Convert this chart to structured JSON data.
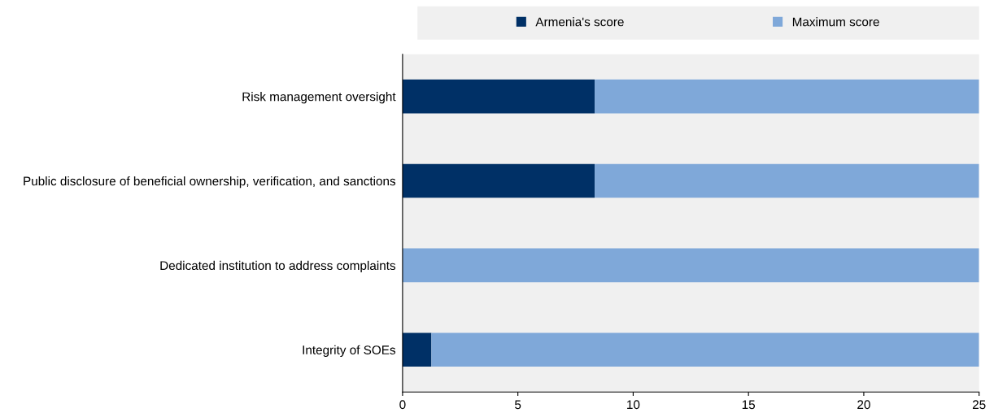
{
  "chart_data": {
    "type": "bar",
    "orientation": "horizontal",
    "stacked": true,
    "categories": [
      "Risk management oversight",
      "Public disclosure of beneficial ownership, verification, and sanctions",
      "Dedicated institution to address complaints",
      "Integrity of SOEs"
    ],
    "series": [
      {
        "name": "Armenia's score",
        "color": "#003066",
        "values": [
          8.33,
          8.33,
          0,
          1.25
        ]
      },
      {
        "name": "Maximum score",
        "color": "#7fa8d9",
        "values": [
          16.67,
          16.67,
          25,
          23.75
        ]
      }
    ],
    "xlim": [
      0,
      25
    ],
    "xticks": [
      0,
      5,
      10,
      15,
      20,
      25
    ],
    "grid": false,
    "legend": "top"
  }
}
